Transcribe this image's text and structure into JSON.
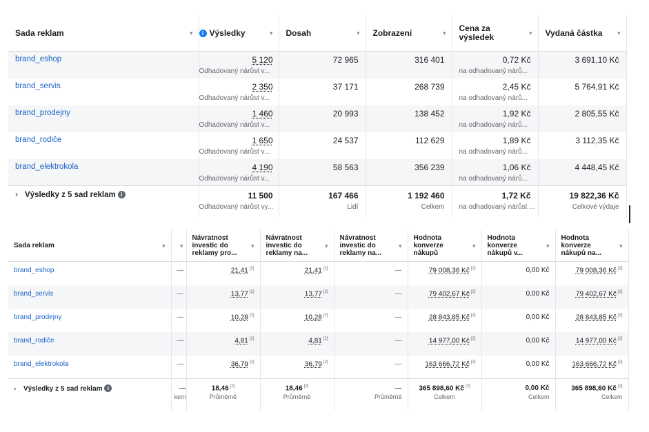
{
  "table1": {
    "columns": [
      {
        "label": "Sada reklam"
      },
      {
        "label": "Výsledky",
        "info": true
      },
      {
        "label": "Dosah"
      },
      {
        "label": "Zobrazení"
      },
      {
        "label": "Cena za výsledek"
      },
      {
        "label": "Vydaná částka"
      }
    ],
    "rows": [
      {
        "name": "brand_eshop",
        "results": "5 120",
        "results_sub": "Odhadovaný nárůst v...",
        "reach": "72 965",
        "impressions": "316 401",
        "cost": "0,72 Kč",
        "cost_sub": "na odhadovaný nárů...",
        "spent": "3 691,10 Kč"
      },
      {
        "name": "brand_servis",
        "results": "2 350",
        "results_sub": "Odhadovaný nárůst v...",
        "reach": "37 171",
        "impressions": "268 739",
        "cost": "2,45 Kč",
        "cost_sub": "na odhadovaný nárů...",
        "spent": "5 764,91 Kč"
      },
      {
        "name": "brand_prodejny",
        "results": "1 460",
        "results_sub": "Odhadovaný nárůst v...",
        "reach": "20 993",
        "impressions": "138 452",
        "cost": "1,92 Kč",
        "cost_sub": "na odhadovaný nárů...",
        "spent": "2 805,55 Kč"
      },
      {
        "name": "brand_rodiče",
        "results": "1 650",
        "results_sub": "Odhadovaný nárůst v...",
        "reach": "24 537",
        "impressions": "112 629",
        "cost": "1,89 Kč",
        "cost_sub": "na odhadovaný nárů...",
        "spent": "3 112,35 Kč"
      },
      {
        "name": "brand_elektrokola",
        "results": "4 190",
        "results_sub": "Odhadovaný nárůst v...",
        "reach": "58 563",
        "impressions": "356 239",
        "cost": "1,06 Kč",
        "cost_sub": "na odhadovaný nárů...",
        "spent": "4 448,45 Kč"
      }
    ],
    "total": {
      "label": "Výsledky z 5 sad reklam",
      "results": "11 500",
      "results_sub": "Odhadovaný nárůst vy...",
      "reach": "167 466",
      "reach_sub": "Lidí",
      "impressions": "1 192 460",
      "impressions_sub": "Celkem",
      "cost": "1,72 Kč",
      "cost_sub": "na odhadovaný nárůst ...",
      "spent": "19 822,36 Kč",
      "spent_sub": "Celkové výdaje"
    }
  },
  "table2": {
    "columns": [
      {
        "label": "Sada reklam"
      },
      {
        "label": ""
      },
      {
        "label": "Návratnost investic do reklamy pro..."
      },
      {
        "label": "Návratnost investic do reklamy na..."
      },
      {
        "label": "Návratnost investic do reklamy na..."
      },
      {
        "label": "Hodnota konverze nákupů"
      },
      {
        "label": "Hodnota konverze nákupů v..."
      },
      {
        "label": "Hodnota konverze nákupů na..."
      }
    ],
    "footnote_mark": "[2]",
    "rows": [
      {
        "name": "brand_eshop",
        "c2": "—",
        "roas1": "21,41",
        "roas2": "21,41",
        "roas3": "—",
        "conv1": "79 008,36 Kč",
        "conv2": "0,00 Kč",
        "conv3": "79 008,36 Kč"
      },
      {
        "name": "brand_servis",
        "c2": "—",
        "roas1": "13,77",
        "roas2": "13,77",
        "roas3": "—",
        "conv1": "79 402,67 Kč",
        "conv2": "0,00 Kč",
        "conv3": "79 402,67 Kč"
      },
      {
        "name": "brand_prodejny",
        "c2": "—",
        "roas1": "10,28",
        "roas2": "10,28",
        "roas3": "—",
        "conv1": "28 843,85 Kč",
        "conv2": "0,00 Kč",
        "conv3": "28 843,85 Kč"
      },
      {
        "name": "brand_rodiče",
        "c2": "—",
        "roas1": "4,81",
        "roas2": "4,81",
        "roas3": "—",
        "conv1": "14 977,00 Kč",
        "conv2": "0,00 Kč",
        "conv3": "14 977,00 Kč"
      },
      {
        "name": "brand_elektrokola",
        "c2": "—",
        "roas1": "36,79",
        "roas2": "36,79",
        "roas3": "—",
        "conv1": "163 666,72 Kč",
        "conv2": "0,00 Kč",
        "conv3": "163 666,72 Kč"
      }
    ],
    "total": {
      "label": "Výsledky z 5 sad reklam",
      "c2": "—",
      "c2_sub": "kem",
      "roas1": "18,46",
      "roas1_sub": "Průměrně",
      "roas2": "18,46",
      "roas2_sub": "Průměrně",
      "roas3": "—",
      "roas3_sub": "Průměrně",
      "conv1": "365 898,60 Kč",
      "conv1_sub": "Celkem",
      "conv2": "0,00 Kč",
      "conv2_sub": "Celkem",
      "conv3": "365 898,60 Kč",
      "conv3_sub": "Celkem"
    }
  },
  "icons": {
    "sort": "sort-caret-icon",
    "info": "info-icon",
    "expand": "chevron-right-icon"
  },
  "colors": {
    "link": "#1a62c9",
    "info_blue": "#1877f2",
    "row_alt": "#f5f6f7"
  }
}
